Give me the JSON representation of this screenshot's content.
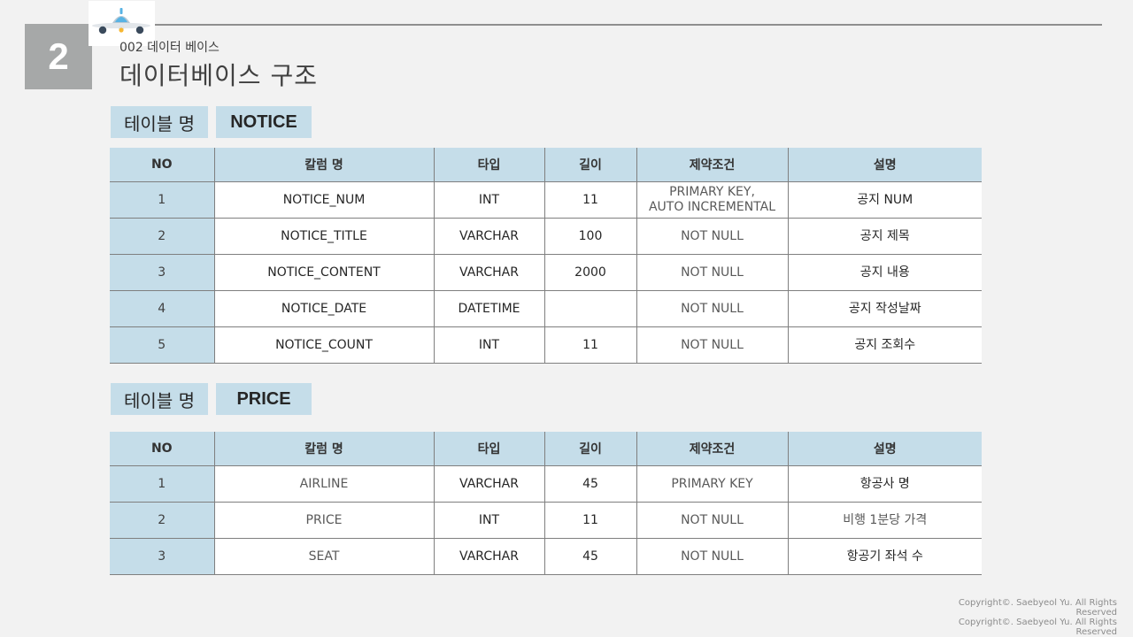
{
  "slide_number": "2",
  "subtitle": "002 데이터 베이스",
  "title": "데이터베이스 구조",
  "table_label": "테이블 명",
  "columns": [
    "NO",
    "칼럼 명",
    "타입",
    "길이",
    "제약조건",
    "설명"
  ],
  "tables": [
    {
      "name": "NOTICE",
      "rows": [
        {
          "no": "1",
          "column": "NOTICE_NUM",
          "type": "INT",
          "length": "11",
          "constraint": "PRIMARY KEY,\nAUTO INCREMENTAL",
          "desc": "공지 NUM"
        },
        {
          "no": "2",
          "column": "NOTICE_TITLE",
          "type": "VARCHAR",
          "length": "100",
          "constraint": "NOT NULL",
          "desc": "공지 제목"
        },
        {
          "no": "3",
          "column": "NOTICE_CONTENT",
          "type": "VARCHAR",
          "length": "2000",
          "constraint": "NOT NULL",
          "desc": "공지 내용"
        },
        {
          "no": "4",
          "column": "NOTICE_DATE",
          "type": "DATETIME",
          "length": "",
          "constraint": "NOT NULL",
          "desc": "공지 작성날짜"
        },
        {
          "no": "5",
          "column": "NOTICE_COUNT",
          "type": "INT",
          "length": "11",
          "constraint": "NOT NULL",
          "desc": "공지 조회수"
        }
      ]
    },
    {
      "name": "PRICE",
      "rows": [
        {
          "no": "1",
          "column": "AIRLINE",
          "type": "VARCHAR",
          "length": "45",
          "constraint": "PRIMARY KEY",
          "desc": "항공사 명"
        },
        {
          "no": "2",
          "column": "PRICE",
          "type": "INT",
          "length": "11",
          "constraint": "NOT NULL",
          "desc": "비행 1분당 가격"
        },
        {
          "no": "3",
          "column": "SEAT",
          "type": "VARCHAR",
          "length": "45",
          "constraint": "NOT NULL",
          "desc": "항공기 좌석 수"
        }
      ]
    }
  ],
  "copyright": [
    "Copyright©. Saebyeol Yu. All Rights Reserved",
    "Copyright©. Saebyeol Yu. All Rights Reserved"
  ],
  "colors": {
    "header": "#c5dde9",
    "number_box": "#a6a8a8",
    "background": "#f2f2f2"
  },
  "logo_icon": "airplane-icon"
}
